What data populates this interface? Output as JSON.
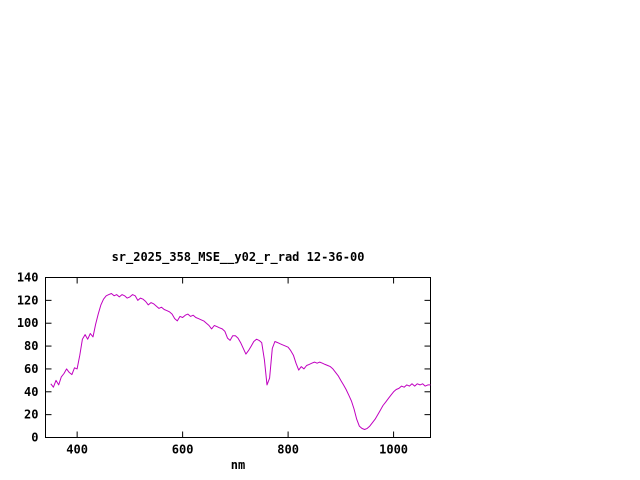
{
  "chart_data": {
    "type": "line",
    "title": "sr_2025_358_MSE__y02_r_rad 12-36-00",
    "xlabel": "nm",
    "ylabel": "",
    "xlim": [
      340,
      1070
    ],
    "ylim": [
      0,
      140
    ],
    "x_ticks": [
      400,
      600,
      800,
      1000
    ],
    "y_ticks": [
      0,
      20,
      40,
      60,
      80,
      100,
      120,
      140
    ],
    "grid": false,
    "legend": "none",
    "line_color": "#c000c0",
    "background_color": "#ffffff",
    "axis_color": "#000000",
    "series": [
      {
        "name": "sr_2025_358_MSE__y02_r_rad 12-36-00",
        "x": [
          350,
          355,
          360,
          365,
          370,
          375,
          380,
          385,
          390,
          395,
          400,
          405,
          410,
          415,
          420,
          425,
          430,
          435,
          440,
          445,
          450,
          455,
          460,
          465,
          470,
          475,
          480,
          485,
          490,
          495,
          500,
          505,
          510,
          515,
          520,
          525,
          530,
          535,
          540,
          545,
          550,
          555,
          560,
          565,
          570,
          575,
          580,
          585,
          590,
          595,
          600,
          605,
          610,
          615,
          620,
          625,
          630,
          635,
          640,
          645,
          650,
          655,
          660,
          665,
          670,
          675,
          680,
          685,
          690,
          695,
          700,
          705,
          710,
          715,
          720,
          725,
          730,
          735,
          740,
          745,
          750,
          755,
          760,
          765,
          770,
          775,
          780,
          785,
          790,
          795,
          800,
          805,
          810,
          815,
          820,
          825,
          830,
          835,
          840,
          845,
          850,
          855,
          860,
          865,
          870,
          875,
          880,
          885,
          890,
          895,
          900,
          905,
          910,
          915,
          920,
          925,
          930,
          935,
          940,
          945,
          950,
          955,
          960,
          965,
          970,
          975,
          980,
          985,
          990,
          995,
          1000,
          1005,
          1010,
          1015,
          1020,
          1025,
          1030,
          1035,
          1040,
          1045,
          1050,
          1055,
          1060,
          1065,
          1070
        ],
        "y": [
          47,
          44,
          50,
          46,
          53,
          56,
          60,
          57,
          55,
          61,
          60,
          72,
          86,
          90,
          86,
          91,
          88,
          99,
          108,
          116,
          121,
          124,
          125,
          126,
          124,
          125,
          123,
          125,
          124,
          122,
          123,
          125,
          124,
          120,
          122,
          121,
          119,
          116,
          118,
          117,
          115,
          113,
          114,
          112,
          111,
          110,
          108,
          104,
          102,
          106,
          105,
          107,
          108,
          106,
          107,
          105,
          104,
          103,
          102,
          100,
          98,
          95,
          98,
          97,
          96,
          95,
          93,
          87,
          85,
          89,
          89,
          87,
          83,
          78,
          73,
          76,
          80,
          84,
          86,
          85,
          83,
          68,
          46,
          52,
          78,
          84,
          83,
          82,
          81,
          80,
          79,
          76,
          72,
          65,
          59,
          62,
          60,
          63,
          64,
          65,
          66,
          65,
          66,
          65,
          64,
          63,
          62,
          60,
          57,
          54,
          50,
          46,
          42,
          37,
          32,
          25,
          16,
          10,
          8,
          7,
          8,
          10,
          13,
          16,
          20,
          24,
          28,
          31,
          34,
          37,
          40,
          42,
          43,
          45,
          44,
          46,
          45,
          47,
          45,
          47,
          46,
          47,
          45,
          46,
          46
        ]
      }
    ]
  }
}
